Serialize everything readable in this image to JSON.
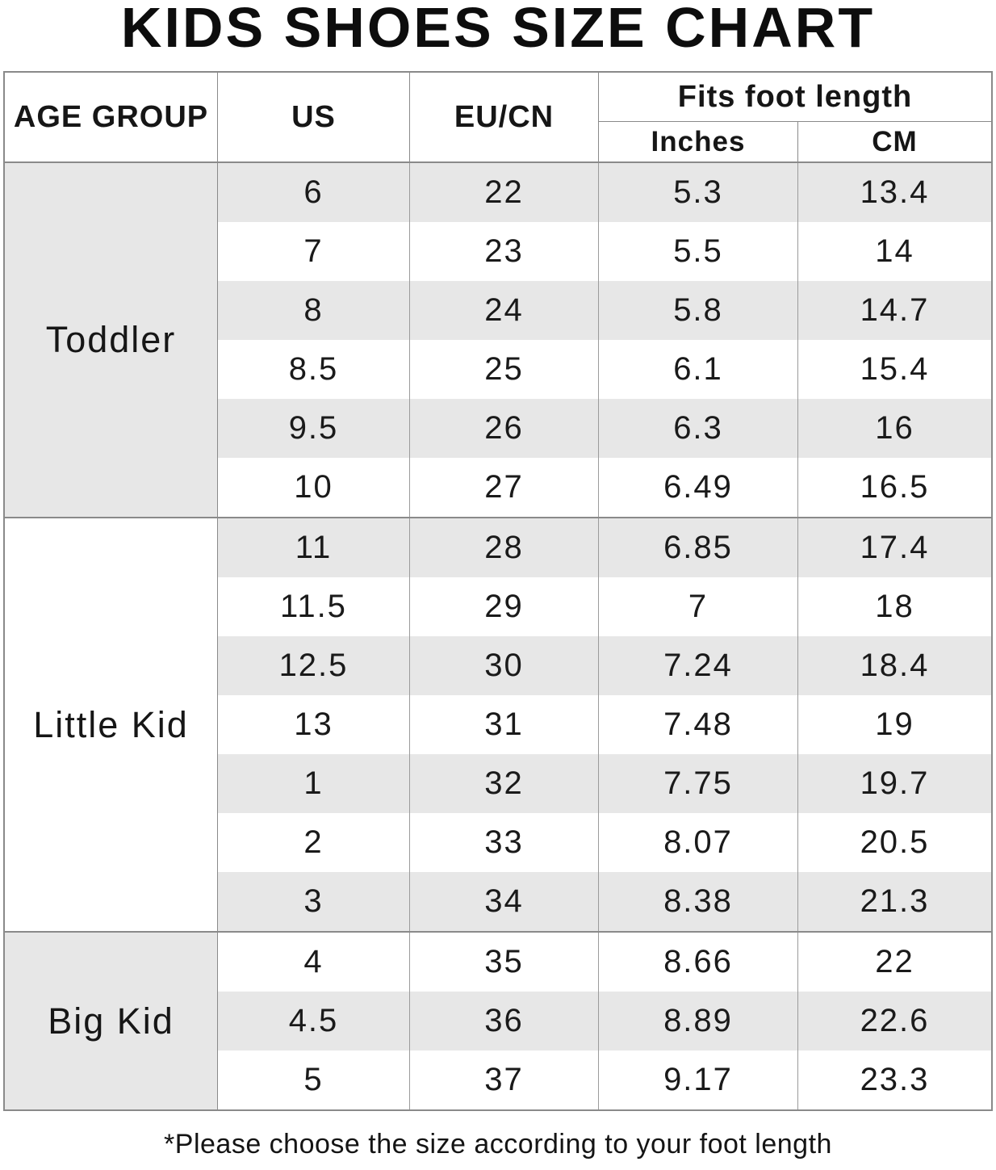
{
  "title": "KIDS SHOES SIZE CHART",
  "footnote": "*Please choose the size according to your foot length",
  "colors": {
    "stripe_gray": "#e7e7e7",
    "border_gray": "#8a8a8a",
    "text_black": "#121212",
    "background": "#ffffff"
  },
  "table": {
    "headers": {
      "age_group": "AGE GROUP",
      "us": "US",
      "eu_cn": "EU/CN",
      "fits_foot_length": "Fits foot length",
      "inches": "Inches",
      "cm": "CM"
    },
    "groups": [
      {
        "label": "Toddler",
        "rows": [
          [
            "6",
            "22",
            "5.3",
            "13.4"
          ],
          [
            "7",
            "23",
            "5.5",
            "14"
          ],
          [
            "8",
            "24",
            "5.8",
            "14.7"
          ],
          [
            "8.5",
            "25",
            "6.1",
            "15.4"
          ],
          [
            "9.5",
            "26",
            "6.3",
            "16"
          ],
          [
            "10",
            "27",
            "6.49",
            "16.5"
          ]
        ]
      },
      {
        "label": "Little Kid",
        "rows": [
          [
            "11",
            "28",
            "6.85",
            "17.4"
          ],
          [
            "11.5",
            "29",
            "7",
            "18"
          ],
          [
            "12.5",
            "30",
            "7.24",
            "18.4"
          ],
          [
            "13",
            "31",
            "7.48",
            "19"
          ],
          [
            "1",
            "32",
            "7.75",
            "19.7"
          ],
          [
            "2",
            "33",
            "8.07",
            "20.5"
          ],
          [
            "3",
            "34",
            "8.38",
            "21.3"
          ]
        ]
      },
      {
        "label": "Big Kid",
        "rows": [
          [
            "4",
            "35",
            "8.66",
            "22"
          ],
          [
            "4.5",
            "36",
            "8.89",
            "22.6"
          ],
          [
            "5",
            "37",
            "9.17",
            "23.3"
          ]
        ]
      }
    ]
  },
  "chart_data": {
    "type": "table",
    "title": "KIDS SHOES SIZE CHART",
    "columns": [
      "AGE GROUP",
      "US",
      "EU/CN",
      "Fits foot length - Inches",
      "Fits foot length - CM"
    ],
    "rows": [
      [
        "Toddler",
        "6",
        "22",
        "5.3",
        "13.4"
      ],
      [
        "Toddler",
        "7",
        "23",
        "5.5",
        "14"
      ],
      [
        "Toddler",
        "8",
        "24",
        "5.8",
        "14.7"
      ],
      [
        "Toddler",
        "8.5",
        "25",
        "6.1",
        "15.4"
      ],
      [
        "Toddler",
        "9.5",
        "26",
        "6.3",
        "16"
      ],
      [
        "Toddler",
        "10",
        "27",
        "6.49",
        "16.5"
      ],
      [
        "Little Kid",
        "11",
        "28",
        "6.85",
        "17.4"
      ],
      [
        "Little Kid",
        "11.5",
        "29",
        "7",
        "18"
      ],
      [
        "Little Kid",
        "12.5",
        "30",
        "7.24",
        "18.4"
      ],
      [
        "Little Kid",
        "13",
        "31",
        "7.48",
        "19"
      ],
      [
        "Little Kid",
        "1",
        "32",
        "7.75",
        "19.7"
      ],
      [
        "Little Kid",
        "2",
        "33",
        "8.07",
        "20.5"
      ],
      [
        "Little Kid",
        "3",
        "34",
        "8.38",
        "21.3"
      ],
      [
        "Big Kid",
        "4",
        "35",
        "8.66",
        "22"
      ],
      [
        "Big Kid",
        "4.5",
        "36",
        "8.89",
        "22.6"
      ],
      [
        "Big Kid",
        "5",
        "37",
        "9.17",
        "23.3"
      ]
    ],
    "footnote": "*Please choose the size according to your foot length",
    "layout": "group column spans multiple rows; zebra striping alternates per data row; grid borders gray"
  }
}
